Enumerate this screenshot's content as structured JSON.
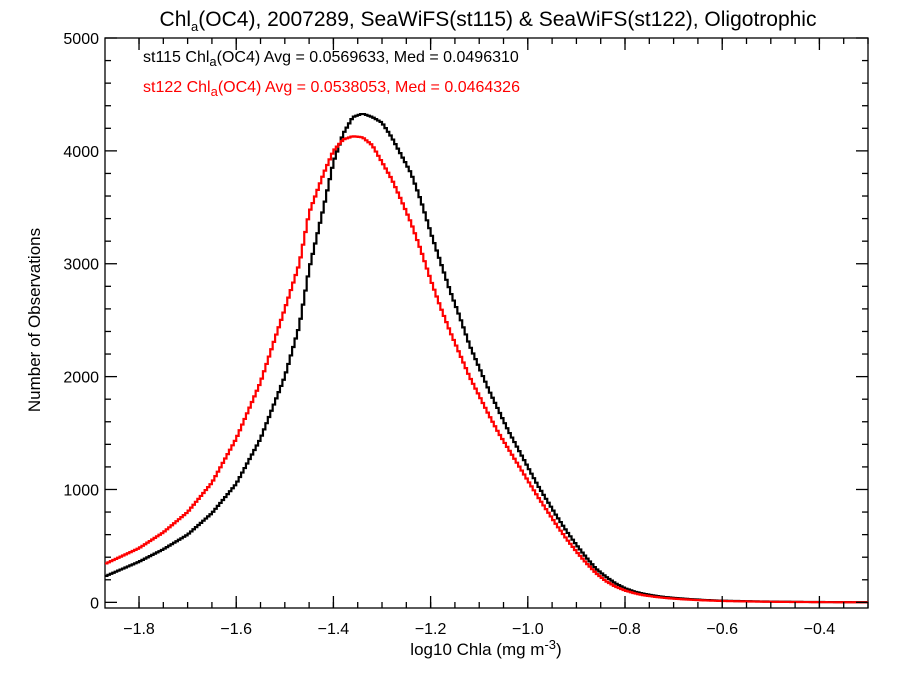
{
  "chart_data": {
    "type": "line",
    "step": true,
    "title": {
      "part1": "Chl",
      "part1_sub": "a",
      "part2": "(OC4), 2007289, SeaWiFS(st115) & SeaWiFS(st122), Oligotrophic"
    },
    "xlabel": {
      "main": "log10 Chla (mg m",
      "sup": "-3",
      "close": ")"
    },
    "ylabel": "Number of Observations",
    "xlim": [
      -1.87,
      -0.3
    ],
    "ylim": [
      -50,
      5000
    ],
    "xticks": [
      -1.8,
      -1.6,
      -1.4,
      -1.2,
      -1.0,
      -0.8,
      -0.6,
      -0.4
    ],
    "xtick_labels": [
      "−1.8",
      "−1.6",
      "−1.4",
      "−1.2",
      "−1.0",
      "−0.8",
      "−0.6",
      "−0.4"
    ],
    "yticks": [
      0,
      1000,
      2000,
      3000,
      4000,
      5000
    ],
    "ytick_labels": [
      "0",
      "1000",
      "2000",
      "3000",
      "4000",
      "5000"
    ],
    "grid": false,
    "legend_position": "top-left",
    "series": [
      {
        "name": "st115",
        "color": "#000000",
        "legend": {
          "pre": "st115 Chl",
          "sub": "a",
          "post": "(OC4) Avg = 0.0569633, Med = 0.0496310"
        },
        "x": [
          -1.87,
          -1.8,
          -1.75,
          -1.7,
          -1.65,
          -1.6,
          -1.55,
          -1.5,
          -1.47,
          -1.45,
          -1.42,
          -1.4,
          -1.38,
          -1.36,
          -1.34,
          -1.32,
          -1.3,
          -1.28,
          -1.26,
          -1.24,
          -1.22,
          -1.2,
          -1.18,
          -1.16,
          -1.14,
          -1.12,
          -1.1,
          -1.08,
          -1.06,
          -1.04,
          -1.02,
          -1.0,
          -0.98,
          -0.96,
          -0.94,
          -0.92,
          -0.9,
          -0.88,
          -0.86,
          -0.84,
          -0.82,
          -0.8,
          -0.78,
          -0.76,
          -0.74,
          -0.72,
          -0.7,
          -0.68,
          -0.66,
          -0.64,
          -0.62,
          -0.6,
          -0.56,
          -0.52,
          -0.48,
          -0.44,
          -0.4,
          -0.35,
          -0.3
        ],
        "y": [
          230,
          360,
          470,
          600,
          790,
          1050,
          1450,
          2000,
          2450,
          2950,
          3500,
          3900,
          4150,
          4300,
          4330,
          4300,
          4250,
          4120,
          3960,
          3800,
          3560,
          3280,
          3020,
          2760,
          2530,
          2280,
          2080,
          1880,
          1700,
          1520,
          1360,
          1200,
          1040,
          900,
          760,
          630,
          510,
          400,
          300,
          230,
          170,
          125,
          95,
          75,
          60,
          48,
          40,
          33,
          27,
          22,
          18,
          15,
          11,
          8,
          6,
          4,
          3,
          2,
          1
        ]
      },
      {
        "name": "st122",
        "color": "#ff0000",
        "legend": {
          "pre": "st122 Chl",
          "sub": "a",
          "post": "(OC4) Avg = 0.0538053, Med = 0.0464326"
        },
        "x": [
          -1.87,
          -1.8,
          -1.75,
          -1.7,
          -1.65,
          -1.6,
          -1.55,
          -1.5,
          -1.47,
          -1.45,
          -1.42,
          -1.4,
          -1.38,
          -1.36,
          -1.34,
          -1.32,
          -1.3,
          -1.28,
          -1.26,
          -1.24,
          -1.22,
          -1.2,
          -1.18,
          -1.16,
          -1.14,
          -1.12,
          -1.1,
          -1.08,
          -1.06,
          -1.04,
          -1.02,
          -1.0,
          -0.98,
          -0.96,
          -0.94,
          -0.92,
          -0.9,
          -0.88,
          -0.86,
          -0.84,
          -0.82,
          -0.8,
          -0.78,
          -0.76,
          -0.74,
          -0.72,
          -0.7,
          -0.68,
          -0.66,
          -0.64,
          -0.62,
          -0.6,
          -0.56,
          -0.52,
          -0.48,
          -0.44,
          -0.4,
          -0.35,
          -0.3
        ],
        "y": [
          340,
          480,
          620,
          800,
          1060,
          1450,
          1950,
          2600,
          3000,
          3450,
          3800,
          4000,
          4100,
          4130,
          4120,
          4050,
          3900,
          3750,
          3560,
          3360,
          3120,
          2860,
          2620,
          2400,
          2200,
          2000,
          1830,
          1660,
          1500,
          1360,
          1220,
          1080,
          940,
          810,
          680,
          560,
          450,
          350,
          260,
          190,
          140,
          105,
          80,
          62,
          50,
          40,
          33,
          27,
          22,
          18,
          15,
          12,
          9,
          6,
          4,
          3,
          2,
          1,
          1
        ]
      }
    ]
  }
}
